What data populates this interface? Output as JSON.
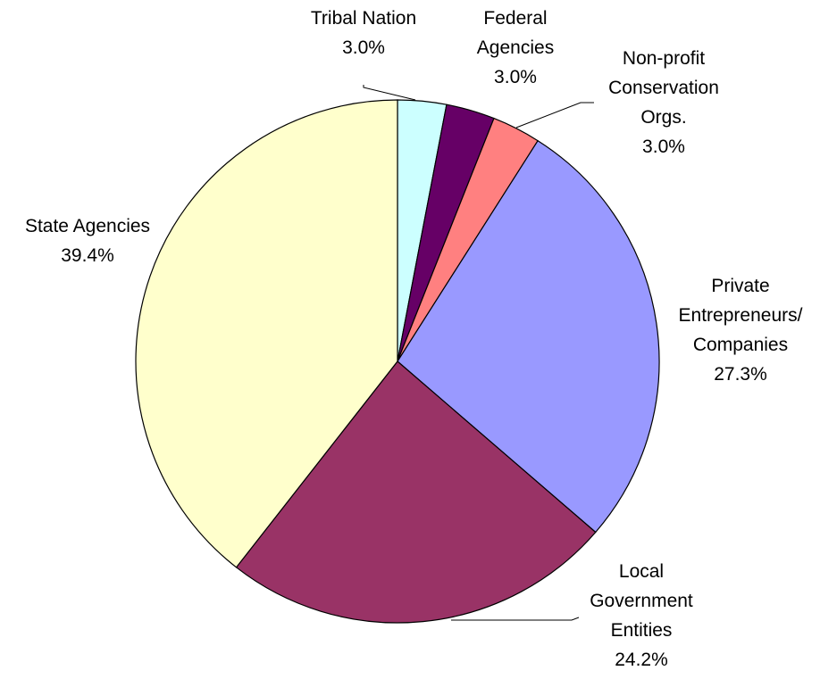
{
  "chart_data": {
    "type": "pie",
    "categories": [
      "Tribal Nation",
      "Federal\nAgencies",
      "Non-profit\nConservation\nOrgs.",
      "Private\nEntrepreneurs/\nCompanies",
      "Local\nGovernment\nEntities",
      "State Agencies"
    ],
    "values": [
      3.0,
      3.0,
      3.0,
      27.3,
      24.2,
      39.4
    ],
    "value_labels": [
      "3.0%",
      "3.0%",
      "3.0%",
      "27.3%",
      "24.2%",
      "39.4%"
    ],
    "colors": [
      "#ccffff",
      "#660066",
      "#ff8080",
      "#9999ff",
      "#993366",
      "#ffffcc"
    ]
  }
}
